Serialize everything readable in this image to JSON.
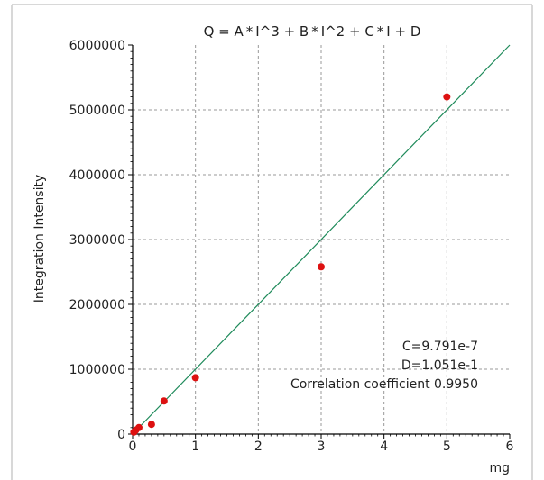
{
  "chart_data": {
    "type": "scatter",
    "title": "Q = A * I^3  +  B * I^2  +  C * I + D",
    "xlabel": "mg",
    "ylabel": "Integration Intensity",
    "xlim": [
      0,
      6
    ],
    "ylim": [
      0,
      6000000
    ],
    "x_ticks": [
      "0",
      "1",
      "2",
      "3",
      "4",
      "5",
      "6"
    ],
    "y_ticks": [
      "0",
      "1000000",
      "2000000",
      "3000000",
      "4000000",
      "5000000",
      "6000000"
    ],
    "grid": true,
    "series": [
      {
        "kind": "points",
        "color": "#dd1111",
        "x": [
          0.02,
          0.05,
          0.1,
          0.3,
          0.5,
          1,
          3,
          5
        ],
        "y": [
          30000,
          60000,
          100000,
          150000,
          510000,
          870000,
          2580000,
          5200000
        ]
      },
      {
        "kind": "fit-line",
        "color": "#1e8a5a",
        "x": [
          0,
          6
        ],
        "y": [
          0,
          6000000
        ]
      }
    ],
    "annotations": [
      "C=9.791e-7",
      "D=1.051e-1",
      "Correlation coefficient 0.9950"
    ]
  }
}
